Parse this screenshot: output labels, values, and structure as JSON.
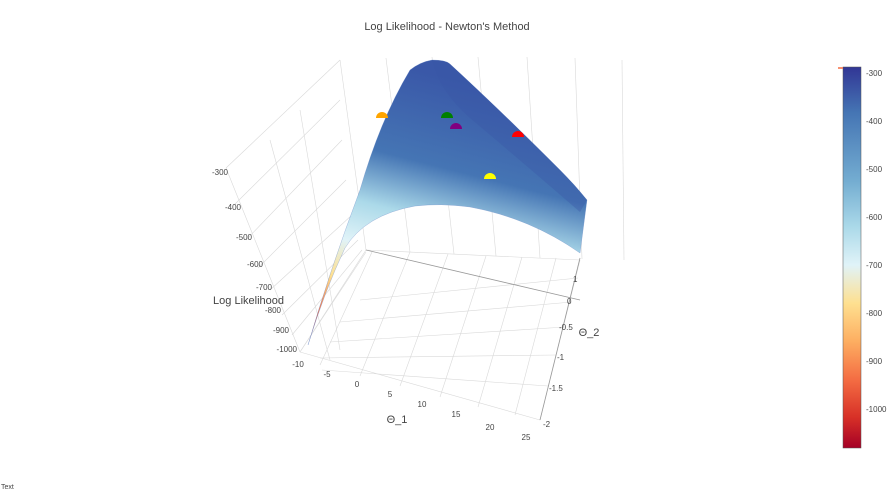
{
  "chart_data": {
    "type": "surface",
    "title": "Log Likelihood - Newton's Method",
    "x_axis": {
      "label": "Θ_1",
      "ticks": [
        "-10",
        "-5",
        "0",
        "5",
        "10",
        "15",
        "20",
        "25"
      ]
    },
    "y_axis": {
      "label": "Θ_2",
      "ticks": [
        "1",
        "0.5",
        "0",
        "-0.5",
        "-1",
        "-1.5",
        "-2"
      ]
    },
    "z_axis": {
      "label": "Log Likelihood",
      "ticks": [
        "-300",
        "-400",
        "-500",
        "-600",
        "-700",
        "-800",
        "-900",
        "-1000"
      ]
    },
    "colorbar": {
      "ticks": [
        "-300",
        "-400",
        "-500",
        "-600",
        "-700",
        "-800",
        "-900",
        "-1000"
      ],
      "colorscale": [
        "#313695",
        "#4575b4",
        "#74add1",
        "#abd9e9",
        "#e0f3f8",
        "#fee090",
        "#fdae61",
        "#f46d43",
        "#d73027",
        "#a50026"
      ]
    },
    "points": [
      {
        "color": "#ffa500"
      },
      {
        "color": "#008000"
      },
      {
        "color": "#800080"
      },
      {
        "color": "#ff0000"
      },
      {
        "color": "#ffff00"
      }
    ]
  },
  "corner_text": "Text"
}
